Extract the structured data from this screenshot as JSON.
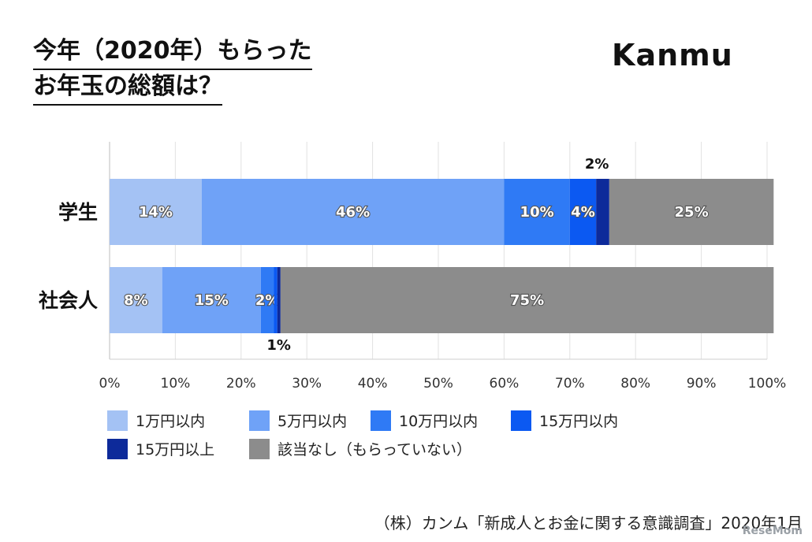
{
  "title_line1": "今年（2020年）もらった",
  "title_line2": "お年玉の総額は？",
  "brand": "Kanmu",
  "source": "（株）カンム「新成人とお金に関する意識調査」2020年1月",
  "watermark": "ReseMom",
  "colors": {
    "s1": "#a4c2f4",
    "s2": "#6fa2f7",
    "s3": "#2f7af5",
    "s4": "#0b59f2",
    "s5": "#0d2a9a",
    "s6": "#8c8c8c"
  },
  "chart_data": {
    "type": "bar",
    "orientation": "horizontal",
    "stacked": true,
    "categories": [
      "学生",
      "社会人"
    ],
    "series": [
      {
        "name": "1万円以内",
        "values": [
          14,
          8
        ],
        "labels": [
          "14%",
          "8%"
        ]
      },
      {
        "name": "5万円以内",
        "values": [
          46,
          15
        ],
        "labels": [
          "46%",
          "15%"
        ]
      },
      {
        "name": "10万円以内",
        "values": [
          10,
          2
        ],
        "labels": [
          "10%",
          "2%"
        ]
      },
      {
        "name": "15万円以内",
        "values": [
          4,
          0.5
        ],
        "labels": [
          "4%",
          ""
        ]
      },
      {
        "name": "15万円以上",
        "values": [
          2,
          0.5
        ],
        "labels": [
          "2%",
          "1%"
        ]
      },
      {
        "name": "該当なし（もらっていない）",
        "values": [
          25,
          75
        ],
        "labels": [
          "25%",
          "75%"
        ]
      }
    ],
    "xlim": [
      0,
      100
    ],
    "xticks": [
      "0%",
      "10%",
      "20%",
      "30%",
      "40%",
      "50%",
      "60%",
      "70%",
      "80%",
      "90%",
      "100%"
    ],
    "grid": true,
    "legend_position": "bottom"
  }
}
